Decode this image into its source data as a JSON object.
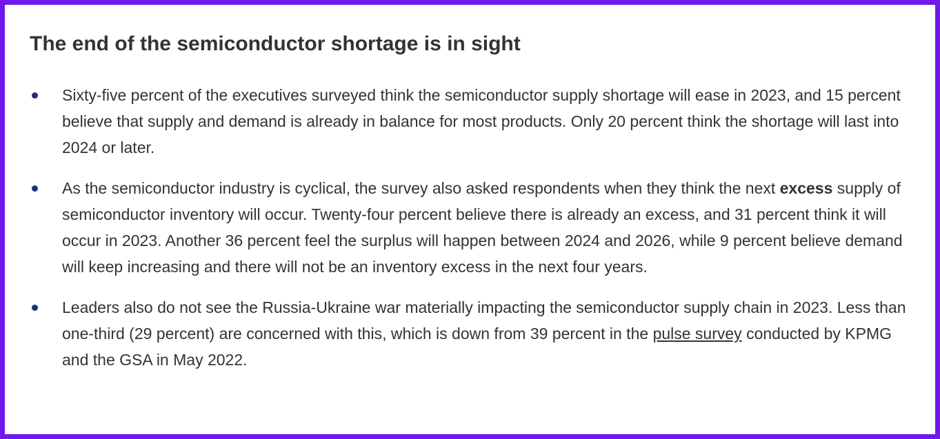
{
  "title": "The end of the semiconductor shortage is in sight",
  "bullets": [
    [
      "Sixty-five percent of the executives surveyed think the semiconductor supply shortage will ease in 2023, and 15 percent believe that supply and demand is already in balance for most products. Only 20 percent think the shortage will last into 2024 or later."
    ],
    [
      "As the semiconductor industry is cyclical, the survey also asked respondents when they think the next ",
      "excess",
      " supply of semiconductor inventory will occur. Twenty-four percent believe there is already an excess, and 31 percent think it will occur in 2023. Another 36 percent feel the surplus will happen between 2024 and 2026, while 9 percent believe demand will keep increasing and there will not be an inventory excess in the next four years."
    ],
    [
      "Leaders also do not see the Russia-Ukraine war materially impacting the semiconductor supply chain in 2023. Less than one-third (29 percent) are concerned with this, which is down from 39 percent in the ",
      "pulse survey",
      " conducted by KPMG and the GSA in May 2022."
    ]
  ]
}
